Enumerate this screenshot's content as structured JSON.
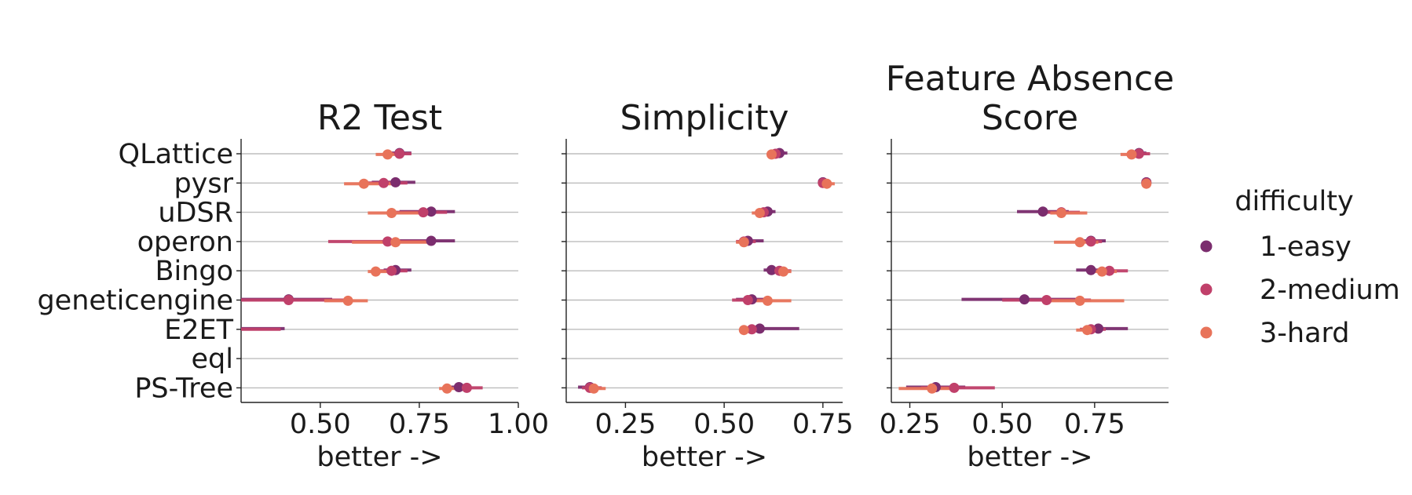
{
  "chart_data": {
    "type": "point-range",
    "legend": {
      "title": "difficulty",
      "placement": "right",
      "entries": [
        {
          "name": "1-easy",
          "color": "#7b2d6e"
        },
        {
          "name": "2-medium",
          "color": "#c0406a"
        },
        {
          "name": "3-hard",
          "color": "#e8735a"
        }
      ]
    },
    "categories": [
      "QLattice",
      "pysr",
      "uDSR",
      "operon",
      "Bingo",
      "geneticengine",
      "E2ET",
      "eql",
      "PS-Tree"
    ],
    "panels": [
      {
        "title": [
          "R2 Test"
        ],
        "xlabel": "better ->",
        "xlim": [
          0.3,
          1.0
        ],
        "xticks": [
          0.5,
          0.75,
          1.0
        ],
        "xtick_labels": [
          "0.50",
          "0.75",
          "1.00"
        ],
        "series": [
          {
            "name": "1-easy",
            "points": [
              {
                "category": "QLattice",
                "value": 0.7,
                "low": 0.68,
                "high": 0.73
              },
              {
                "category": "pysr",
                "value": 0.69,
                "low": 0.63,
                "high": 0.74
              },
              {
                "category": "uDSR",
                "value": 0.78,
                "low": 0.7,
                "high": 0.84
              },
              {
                "category": "operon",
                "value": 0.78,
                "low": 0.67,
                "high": 0.84
              },
              {
                "category": "Bingo",
                "value": 0.69,
                "low": 0.66,
                "high": 0.73
              },
              {
                "category": "geneticengine",
                "value": 0.42,
                "low": 0.3,
                "high": 0.53
              },
              {
                "category": "E2ET",
                "value": null,
                "low": 0.3,
                "high": 0.41
              },
              {
                "category": "PS-Tree",
                "value": 0.85,
                "low": 0.82,
                "high": 0.88
              }
            ]
          },
          {
            "name": "2-medium",
            "points": [
              {
                "category": "QLattice",
                "value": 0.7,
                "low": 0.66,
                "high": 0.73
              },
              {
                "category": "pysr",
                "value": 0.66,
                "low": 0.6,
                "high": 0.72
              },
              {
                "category": "uDSR",
                "value": 0.76,
                "low": 0.68,
                "high": 0.82
              },
              {
                "category": "operon",
                "value": 0.67,
                "low": 0.52,
                "high": 0.79
              },
              {
                "category": "Bingo",
                "value": 0.68,
                "low": 0.64,
                "high": 0.72
              },
              {
                "category": "geneticengine",
                "value": 0.42,
                "low": 0.3,
                "high": 0.56
              },
              {
                "category": "E2ET",
                "value": null,
                "low": 0.3,
                "high": 0.4
              },
              {
                "category": "PS-Tree",
                "value": 0.87,
                "low": 0.84,
                "high": 0.91
              }
            ]
          },
          {
            "name": "3-hard",
            "points": [
              {
                "category": "QLattice",
                "value": 0.67,
                "low": 0.64,
                "high": 0.71
              },
              {
                "category": "pysr",
                "value": 0.61,
                "low": 0.56,
                "high": 0.68
              },
              {
                "category": "uDSR",
                "value": 0.68,
                "low": 0.62,
                "high": 0.75
              },
              {
                "category": "operon",
                "value": 0.69,
                "low": 0.58,
                "high": 0.77
              },
              {
                "category": "Bingo",
                "value": 0.64,
                "low": 0.62,
                "high": 0.68
              },
              {
                "category": "geneticengine",
                "value": 0.57,
                "low": 0.51,
                "high": 0.62
              },
              {
                "category": "PS-Tree",
                "value": 0.82,
                "low": 0.8,
                "high": 0.84
              }
            ]
          }
        ]
      },
      {
        "title": [
          "Simplicity"
        ],
        "xlabel": "better ->",
        "xlim": [
          0.1,
          0.8
        ],
        "xticks": [
          0.25,
          0.5,
          0.75
        ],
        "xtick_labels": [
          "0.25",
          "0.50",
          "0.75"
        ],
        "series": [
          {
            "name": "1-easy",
            "points": [
              {
                "category": "QLattice",
                "value": 0.64,
                "low": 0.62,
                "high": 0.66
              },
              {
                "category": "pysr",
                "value": 0.75,
                "low": 0.74,
                "high": 0.76
              },
              {
                "category": "uDSR",
                "value": 0.61,
                "low": 0.59,
                "high": 0.63
              },
              {
                "category": "operon",
                "value": 0.56,
                "low": 0.54,
                "high": 0.6
              },
              {
                "category": "Bingo",
                "value": 0.62,
                "low": 0.6,
                "high": 0.64
              },
              {
                "category": "geneticengine",
                "value": 0.57,
                "low": 0.53,
                "high": 0.61
              },
              {
                "category": "E2ET",
                "value": 0.59,
                "low": 0.57,
                "high": 0.69
              },
              {
                "category": "PS-Tree",
                "value": 0.16,
                "low": 0.13,
                "high": 0.18
              }
            ]
          },
          {
            "name": "2-medium",
            "points": [
              {
                "category": "QLattice",
                "value": 0.63,
                "low": 0.61,
                "high": 0.65
              },
              {
                "category": "pysr",
                "value": 0.75,
                "low": 0.74,
                "high": 0.76
              },
              {
                "category": "uDSR",
                "value": 0.6,
                "low": 0.58,
                "high": 0.62
              },
              {
                "category": "operon",
                "value": 0.55,
                "low": 0.53,
                "high": 0.58
              },
              {
                "category": "Bingo",
                "value": 0.64,
                "low": 0.61,
                "high": 0.67
              },
              {
                "category": "geneticengine",
                "value": 0.56,
                "low": 0.52,
                "high": 0.6
              },
              {
                "category": "E2ET",
                "value": 0.57,
                "low": 0.55,
                "high": 0.6
              },
              {
                "category": "PS-Tree",
                "value": 0.16,
                "low": 0.14,
                "high": 0.19
              }
            ]
          },
          {
            "name": "3-hard",
            "points": [
              {
                "category": "QLattice",
                "value": 0.62,
                "low": 0.61,
                "high": 0.64
              },
              {
                "category": "pysr",
                "value": 0.76,
                "low": 0.74,
                "high": 0.78
              },
              {
                "category": "uDSR",
                "value": 0.59,
                "low": 0.57,
                "high": 0.61
              },
              {
                "category": "operon",
                "value": 0.55,
                "low": 0.53,
                "high": 0.57
              },
              {
                "category": "Bingo",
                "value": 0.65,
                "low": 0.63,
                "high": 0.67
              },
              {
                "category": "geneticengine",
                "value": 0.61,
                "low": 0.57,
                "high": 0.67
              },
              {
                "category": "E2ET",
                "value": 0.55,
                "low": 0.54,
                "high": 0.57
              },
              {
                "category": "PS-Tree",
                "value": 0.17,
                "low": 0.15,
                "high": 0.2
              }
            ]
          }
        ]
      },
      {
        "title": [
          "Feature Absence",
          "Score"
        ],
        "xlabel": "better ->",
        "xlim": [
          0.2,
          0.95
        ],
        "xticks": [
          0.25,
          0.5,
          0.75
        ],
        "xtick_labels": [
          "0.25",
          "0.50",
          "0.75"
        ],
        "series": [
          {
            "name": "1-easy",
            "points": [
              {
                "category": "QLattice",
                "value": 0.87,
                "low": 0.85,
                "high": 0.89
              },
              {
                "category": "pysr",
                "value": 0.89,
                "low": 0.88,
                "high": 0.9
              },
              {
                "category": "uDSR",
                "value": 0.61,
                "low": 0.54,
                "high": 0.68
              },
              {
                "category": "operon",
                "value": 0.74,
                "low": 0.71,
                "high": 0.78
              },
              {
                "category": "Bingo",
                "value": 0.74,
                "low": 0.7,
                "high": 0.78
              },
              {
                "category": "geneticengine",
                "value": 0.56,
                "low": 0.39,
                "high": 0.7
              },
              {
                "category": "E2ET",
                "value": 0.76,
                "low": 0.72,
                "high": 0.84
              },
              {
                "category": "PS-Tree",
                "value": 0.32,
                "low": 0.24,
                "high": 0.4
              }
            ]
          },
          {
            "name": "2-medium",
            "points": [
              {
                "category": "QLattice",
                "value": 0.87,
                "low": 0.84,
                "high": 0.9
              },
              {
                "category": "pysr",
                "value": 0.89,
                "low": 0.88,
                "high": 0.9
              },
              {
                "category": "uDSR",
                "value": 0.66,
                "low": 0.62,
                "high": 0.71
              },
              {
                "category": "operon",
                "value": 0.74,
                "low": 0.7,
                "high": 0.77
              },
              {
                "category": "Bingo",
                "value": 0.79,
                "low": 0.75,
                "high": 0.84
              },
              {
                "category": "geneticengine",
                "value": 0.62,
                "low": 0.5,
                "high": 0.74
              },
              {
                "category": "E2ET",
                "value": 0.74,
                "low": 0.71,
                "high": 0.78
              },
              {
                "category": "PS-Tree",
                "value": 0.37,
                "low": 0.28,
                "high": 0.48
              }
            ]
          },
          {
            "name": "3-hard",
            "points": [
              {
                "category": "QLattice",
                "value": 0.85,
                "low": 0.82,
                "high": 0.88
              },
              {
                "category": "pysr",
                "value": 0.89,
                "low": 0.88,
                "high": 0.9
              },
              {
                "category": "uDSR",
                "value": 0.66,
                "low": 0.63,
                "high": 0.73
              },
              {
                "category": "operon",
                "value": 0.71,
                "low": 0.64,
                "high": 0.76
              },
              {
                "category": "Bingo",
                "value": 0.77,
                "low": 0.74,
                "high": 0.81
              },
              {
                "category": "geneticengine",
                "value": 0.71,
                "low": 0.61,
                "high": 0.83
              },
              {
                "category": "E2ET",
                "value": 0.73,
                "low": 0.7,
                "high": 0.76
              },
              {
                "category": "PS-Tree",
                "value": 0.31,
                "low": 0.22,
                "high": 0.36
              }
            ]
          }
        ]
      }
    ]
  }
}
